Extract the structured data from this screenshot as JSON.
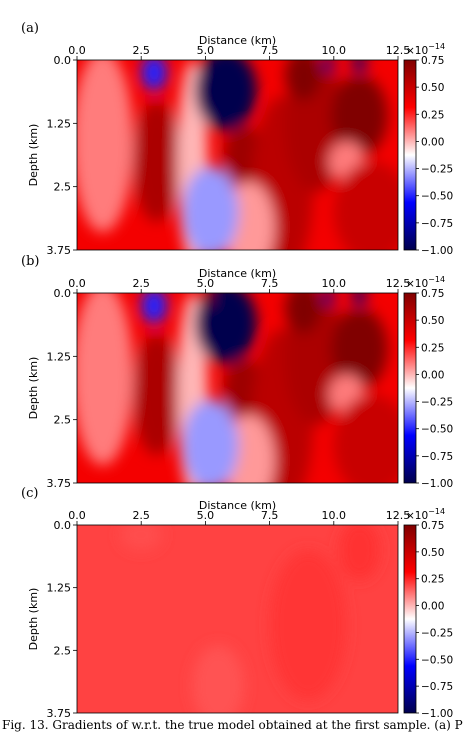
{
  "figure": {
    "caption": "Fig. 13.   Gradients of w.r.t. the true model obtained at the first sample. (a) P"
  },
  "chart_data": [
    {
      "type": "heatmap",
      "panel_label": "(a)",
      "xlabel": "Distance (km)",
      "ylabel": "Depth (km)",
      "xlim": [
        0.0,
        12.5
      ],
      "ylim": [
        0.0,
        3.75
      ],
      "x_ticks": [
        "0.0",
        "2.5",
        "5.0",
        "7.5",
        "10.0",
        "12.5"
      ],
      "y_ticks": [
        "0.0",
        "1.25",
        "2.5",
        "3.75"
      ],
      "colorbar": {
        "exponent_label": "×10",
        "exponent": "−14",
        "range": [
          -1.0,
          0.75
        ],
        "ticks": [
          "0.75",
          "0.50",
          "0.25",
          "0.00",
          "−0.25",
          "−0.50",
          "−0.75",
          "−1.00"
        ],
        "colormap": "seismic",
        "color_min": "#00004c",
        "color_mid": "#ffffff",
        "color_max": "#800000"
      },
      "background_value": 0.35,
      "features": [
        {
          "x": 3.1,
          "z": 2.0,
          "rx": 0.9,
          "rz": 1.2,
          "value": 0.6
        },
        {
          "x": 1.0,
          "z": 1.6,
          "rx": 1.2,
          "rz": 1.8,
          "value": 0.1
        },
        {
          "x": 4.5,
          "z": 2.0,
          "rx": 0.6,
          "rz": 2.0,
          "value": 0.0
        },
        {
          "x": 6.5,
          "z": 1.9,
          "rx": 0.8,
          "rz": 0.6,
          "value": 0.65
        },
        {
          "x": 8.0,
          "z": 2.5,
          "rx": 1.2,
          "rz": 1.8,
          "value": 0.55
        },
        {
          "x": 9.3,
          "z": 1.3,
          "rx": 1.2,
          "rz": 1.3,
          "value": 0.6
        },
        {
          "x": 8.8,
          "z": 0.3,
          "rx": 0.7,
          "rz": 0.5,
          "value": 0.75
        },
        {
          "x": 11.0,
          "z": 1.1,
          "rx": 1.1,
          "rz": 0.8,
          "value": 0.75
        },
        {
          "x": 10.5,
          "z": 2.0,
          "rx": 0.7,
          "rz": 0.4,
          "value": 0.1
        },
        {
          "x": 11.5,
          "z": 3.0,
          "rx": 1.5,
          "rz": 1.0,
          "value": 0.5
        },
        {
          "x": 6.7,
          "z": 3.3,
          "rx": 1.0,
          "rz": 0.9,
          "value": 0.05
        },
        {
          "x": 3.0,
          "z": 0.25,
          "rx": 0.5,
          "rz": 0.35,
          "value": -0.5
        },
        {
          "x": 5.8,
          "z": 0.6,
          "rx": 1.2,
          "rz": 0.8,
          "value": -1.0
        },
        {
          "x": 5.2,
          "z": 3.0,
          "rx": 1.1,
          "rz": 0.9,
          "value": -0.3
        },
        {
          "x": 9.8,
          "z": 0.08,
          "rx": 0.25,
          "rz": 0.15,
          "value": -0.9
        },
        {
          "x": 11.0,
          "z": 0.08,
          "rx": 0.3,
          "rz": 0.15,
          "value": -0.9
        }
      ]
    },
    {
      "type": "heatmap",
      "panel_label": "(b)",
      "xlabel": "Distance (km)",
      "ylabel": "Depth (km)",
      "xlim": [
        0.0,
        12.5
      ],
      "ylim": [
        0.0,
        3.75
      ],
      "x_ticks": [
        "0.0",
        "2.5",
        "5.0",
        "7.5",
        "10.0",
        "12.5"
      ],
      "y_ticks": [
        "0.0",
        "1.25",
        "2.5",
        "3.75"
      ],
      "colorbar": {
        "exponent_label": "×10",
        "exponent": "−14",
        "range": [
          -1.0,
          0.75
        ],
        "ticks": [
          "0.75",
          "0.50",
          "0.25",
          "0.00",
          "−0.25",
          "−0.50",
          "−0.75",
          "−1.00"
        ],
        "colormap": "seismic",
        "color_min": "#00004c",
        "color_mid": "#ffffff",
        "color_max": "#800000"
      },
      "background_value": 0.35,
      "features": [
        {
          "x": 3.1,
          "z": 2.0,
          "rx": 0.9,
          "rz": 1.2,
          "value": 0.6
        },
        {
          "x": 1.0,
          "z": 1.6,
          "rx": 1.2,
          "rz": 1.8,
          "value": 0.1
        },
        {
          "x": 4.5,
          "z": 2.0,
          "rx": 0.6,
          "rz": 2.0,
          "value": 0.0
        },
        {
          "x": 6.5,
          "z": 1.9,
          "rx": 0.8,
          "rz": 0.6,
          "value": 0.65
        },
        {
          "x": 8.0,
          "z": 2.5,
          "rx": 1.2,
          "rz": 1.8,
          "value": 0.55
        },
        {
          "x": 9.3,
          "z": 1.3,
          "rx": 1.2,
          "rz": 1.3,
          "value": 0.6
        },
        {
          "x": 8.8,
          "z": 0.3,
          "rx": 0.7,
          "rz": 0.5,
          "value": 0.75
        },
        {
          "x": 11.0,
          "z": 1.1,
          "rx": 1.1,
          "rz": 0.8,
          "value": 0.75
        },
        {
          "x": 10.5,
          "z": 2.0,
          "rx": 0.7,
          "rz": 0.4,
          "value": 0.1
        },
        {
          "x": 11.5,
          "z": 3.0,
          "rx": 1.5,
          "rz": 1.0,
          "value": 0.5
        },
        {
          "x": 6.7,
          "z": 3.3,
          "rx": 1.0,
          "rz": 0.9,
          "value": 0.05
        },
        {
          "x": 3.0,
          "z": 0.25,
          "rx": 0.5,
          "rz": 0.35,
          "value": -0.5
        },
        {
          "x": 5.8,
          "z": 0.6,
          "rx": 1.2,
          "rz": 0.8,
          "value": -1.0
        },
        {
          "x": 5.2,
          "z": 3.0,
          "rx": 1.1,
          "rz": 0.9,
          "value": -0.3
        },
        {
          "x": 5.1,
          "z": 0.1,
          "rx": 0.2,
          "rz": 0.12,
          "value": 0.75
        },
        {
          "x": 9.8,
          "z": 0.08,
          "rx": 0.25,
          "rz": 0.15,
          "value": -0.9
        },
        {
          "x": 11.0,
          "z": 0.08,
          "rx": 0.3,
          "rz": 0.15,
          "value": -0.9
        }
      ]
    },
    {
      "type": "heatmap",
      "panel_label": "(c)",
      "xlabel": "Distance (km)",
      "ylabel": "Depth (km)",
      "xlim": [
        0.0,
        12.5
      ],
      "ylim": [
        0.0,
        3.75
      ],
      "x_ticks": [
        "0.0",
        "2.5",
        "5.0",
        "7.5",
        "10.0",
        "12.5"
      ],
      "y_ticks": [
        "0.0",
        "1.25",
        "2.5",
        "3.75"
      ],
      "colorbar": {
        "exponent_label": "×10",
        "exponent": "−14",
        "range": [
          -1.0,
          0.75
        ],
        "ticks": [
          "0.75",
          "0.50",
          "0.25",
          "0.00",
          "−0.25",
          "−0.50",
          "−0.75",
          "−1.00"
        ],
        "colormap": "seismic",
        "color_min": "#00004c",
        "color_mid": "#ffffff",
        "color_max": "#800000"
      },
      "background_value": 0.2,
      "features": [
        {
          "x": 2.5,
          "z": 0.2,
          "rx": 0.8,
          "rz": 0.3,
          "value": 0.18
        },
        {
          "x": 11.0,
          "z": 0.5,
          "rx": 0.8,
          "rz": 0.6,
          "value": 0.23
        },
        {
          "x": 9.0,
          "z": 2.0,
          "rx": 1.5,
          "rz": 1.5,
          "value": 0.22
        },
        {
          "x": 5.5,
          "z": 3.2,
          "rx": 1.0,
          "rz": 0.8,
          "value": 0.17
        }
      ]
    }
  ]
}
